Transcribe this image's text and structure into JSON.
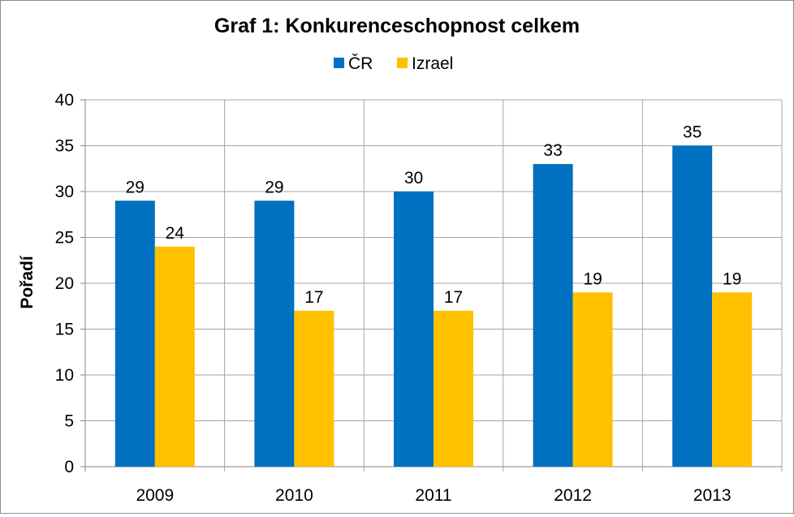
{
  "chart_data": {
    "type": "bar",
    "title": "Graf 1: Konkurenceschopnost celkem",
    "xlabel": "",
    "ylabel": "Pořadí",
    "categories": [
      "2009",
      "2010",
      "2011",
      "2012",
      "2013"
    ],
    "series": [
      {
        "name": "ČR",
        "color": "#0070c0",
        "values": [
          29,
          29,
          30,
          33,
          35
        ]
      },
      {
        "name": "Izrael",
        "color": "#ffc000",
        "values": [
          24,
          17,
          17,
          19,
          19
        ]
      }
    ],
    "ylim": [
      0,
      40
    ],
    "yticks": [
      0,
      5,
      10,
      15,
      20,
      25,
      30,
      35,
      40
    ],
    "grid": true,
    "legend": "top-center",
    "data_labels": true
  }
}
